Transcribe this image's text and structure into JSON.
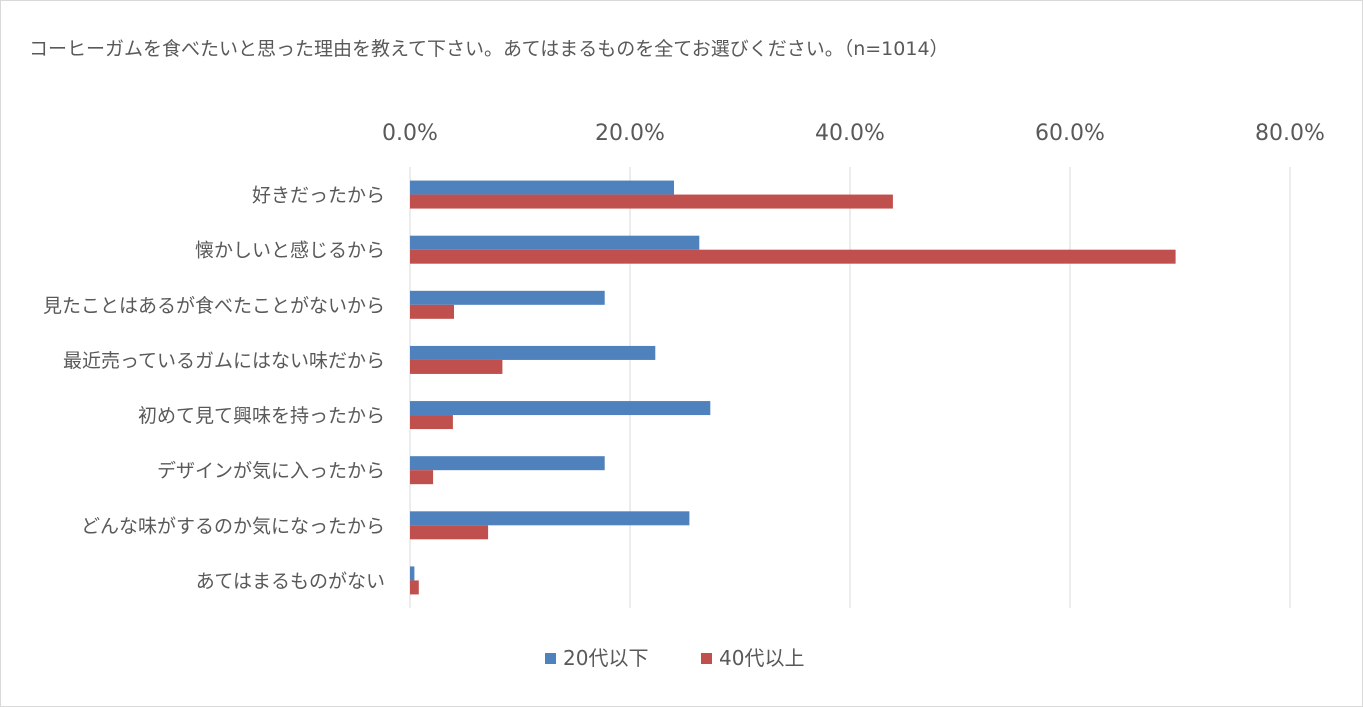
{
  "chart_data": {
    "type": "bar",
    "orientation": "horizontal",
    "title": "コーヒーガムを食べたいと思った理由を教えて下さい。あてはまるものを全てお選びください。（n=1014）",
    "categories": [
      "好きだったから",
      "懐かしいと感じるから",
      "見たことはあるが食べたことがないから",
      "最近売っているガムにはない味だから",
      "初めて見て興味を持ったから",
      "デザインが気に入ったから",
      "どんな味がするのか気になったから",
      "あてはまるものがない"
    ],
    "series": [
      {
        "name": "20代以下",
        "color": "#4f81bd",
        "values": [
          24.0,
          26.3,
          17.7,
          22.3,
          27.3,
          17.7,
          25.4,
          0.4
        ]
      },
      {
        "name": "40代以上",
        "color": "#c0504d",
        "values": [
          43.9,
          69.6,
          4.0,
          8.4,
          3.9,
          2.1,
          7.1,
          0.8
        ]
      }
    ],
    "xlim": [
      0,
      80
    ],
    "ticks": [
      "0.0%",
      "20.0%",
      "40.0%",
      "60.0%",
      "80.0%"
    ],
    "tick_values": [
      0,
      20,
      40,
      60,
      80
    ],
    "grid": true,
    "axis_position": "top",
    "legend_position": "bottom"
  }
}
